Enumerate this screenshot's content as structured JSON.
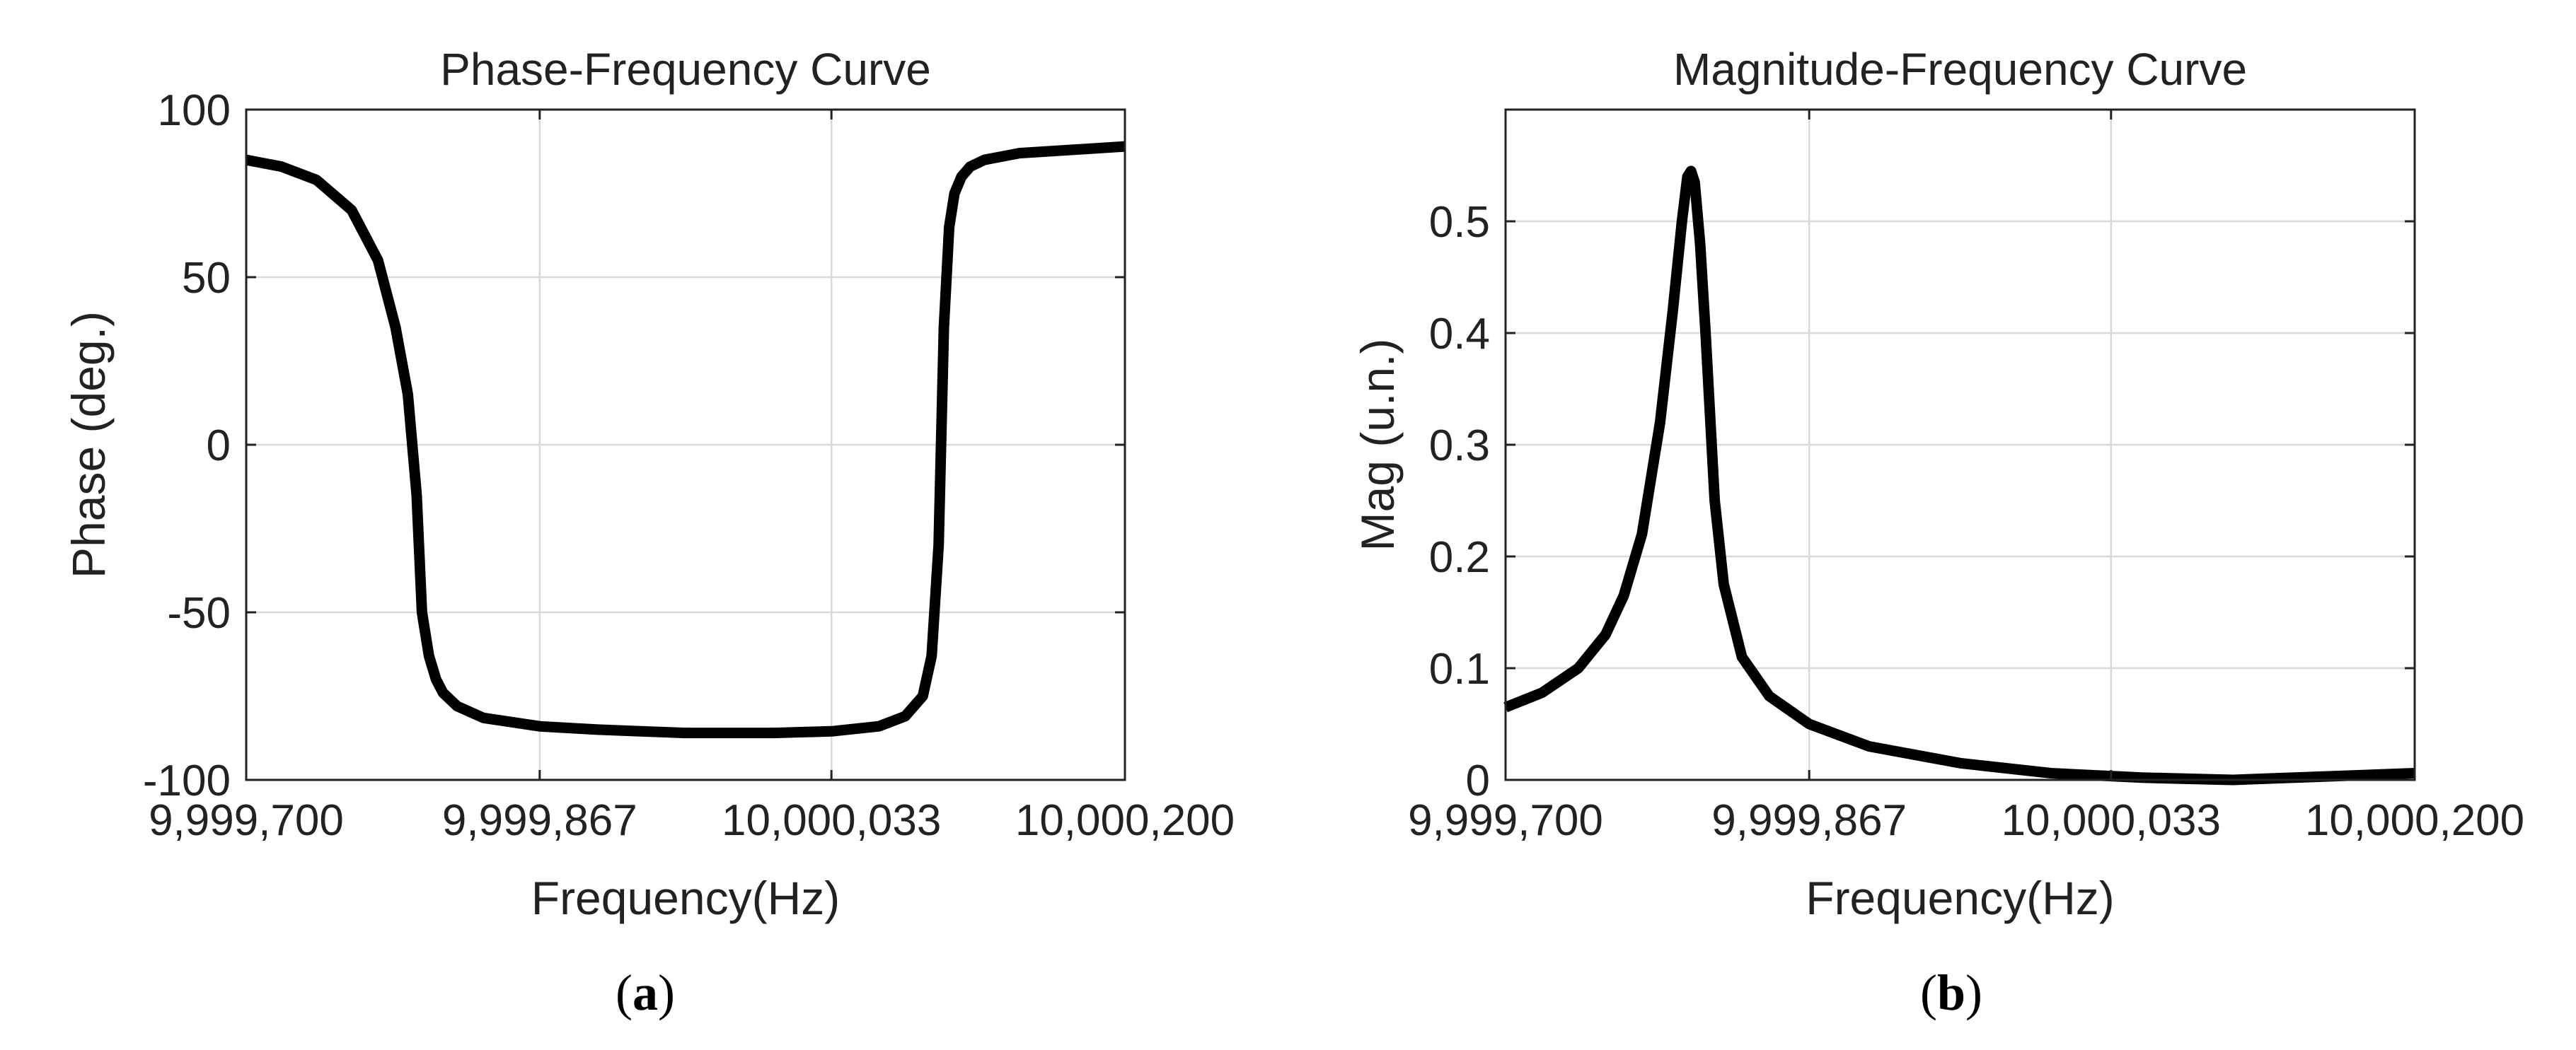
{
  "colors": {
    "curve": "#000000",
    "grid": "#d9d9d9",
    "axis": "#222222",
    "text": "#222222",
    "background": "#ffffff"
  },
  "chart_data": [
    {
      "type": "line",
      "panel_label_open": "(",
      "panel_label_letter": "a",
      "panel_label_close": ")",
      "title": "Phase-Frequency Curve",
      "xlabel": "Frequency(Hz)",
      "ylabel": "Phase (deg.)",
      "xlim": [
        9999700,
        10000200
      ],
      "ylim": [
        -100,
        100
      ],
      "xticks": [
        9999700,
        9999867,
        10000033,
        10000200
      ],
      "xtick_labels": [
        "9,999,700",
        "9,999,867",
        "10,000,033",
        "10,000,200"
      ],
      "yticks": [
        -100,
        -50,
        0,
        50,
        100
      ],
      "ytick_labels": [
        "-100",
        "-50",
        "0",
        "50",
        "100"
      ],
      "grid": true,
      "series": [
        {
          "name": "phase",
          "x": [
            9999700,
            9999720,
            9999740,
            9999760,
            9999775,
            9999785,
            9999792,
            9999797,
            9999800,
            9999804,
            9999808,
            9999812,
            9999820,
            9999835,
            9999867,
            9999900,
            9999950,
            10000000,
            10000033,
            10000060,
            10000075,
            10000085,
            10000090,
            10000094,
            10000097,
            10000100,
            10000103,
            10000107,
            10000112,
            10000120,
            10000140,
            10000170,
            10000200
          ],
          "y": [
            85,
            83,
            79,
            70,
            55,
            35,
            15,
            -15,
            -50,
            -63,
            -70,
            -74,
            -78,
            -81.5,
            -84,
            -85,
            -86,
            -86,
            -85.5,
            -84,
            -81,
            -75,
            -63,
            -30,
            35,
            65,
            75,
            80,
            83,
            85,
            87,
            88,
            89
          ]
        }
      ]
    },
    {
      "type": "line",
      "panel_label_open": "(",
      "panel_label_letter": "b",
      "panel_label_close": ")",
      "title": "Magnitude-Frequency Curve",
      "xlabel": "Frequency(Hz)",
      "ylabel": "Mag (u.n.)",
      "xlim": [
        9999700,
        10000200
      ],
      "ylim": [
        0,
        0.6
      ],
      "xticks": [
        9999700,
        9999867,
        10000033,
        10000200
      ],
      "xtick_labels": [
        "9,999,700",
        "9,999,867",
        "10,000,033",
        "10,000,200"
      ],
      "yticks": [
        0,
        0.1,
        0.2,
        0.3,
        0.4,
        0.5
      ],
      "ytick_labels": [
        "0",
        "0.1",
        "0.2",
        "0.3",
        "0.4",
        "0.5"
      ],
      "grid": true,
      "series": [
        {
          "name": "magnitude",
          "x": [
            9999700,
            9999720,
            9999740,
            9999755,
            9999765,
            9999775,
            9999785,
            9999792,
            9999797,
            9999800,
            9999802,
            9999804,
            9999807,
            9999810,
            9999815,
            9999820,
            9999830,
            9999845,
            9999867,
            9999900,
            9999950,
            10000000,
            10000050,
            10000100,
            10000150,
            10000200
          ],
          "y": [
            0.065,
            0.078,
            0.1,
            0.13,
            0.165,
            0.22,
            0.32,
            0.42,
            0.5,
            0.54,
            0.545,
            0.535,
            0.48,
            0.4,
            0.25,
            0.175,
            0.11,
            0.075,
            0.05,
            0.03,
            0.015,
            0.006,
            0.002,
            0.0,
            0.003,
            0.006
          ]
        }
      ]
    }
  ]
}
